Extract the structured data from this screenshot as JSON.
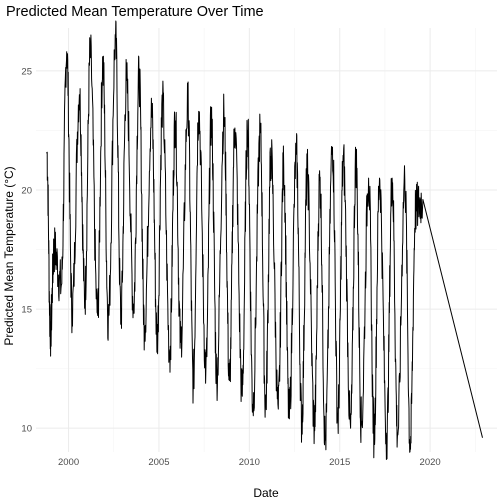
{
  "chart_data": {
    "type": "line",
    "title": "Predicted Mean Temperature Over Time",
    "xlabel": "Date",
    "ylabel": "Predicted Mean Temperature (°C)",
    "x_ticks": [
      2000,
      2005,
      2010,
      2015,
      2020
    ],
    "y_ticks": [
      10,
      15,
      20,
      25
    ],
    "xlim": [
      1998.2,
      2023.7
    ],
    "ylim": [
      9.0,
      26.8
    ],
    "grid": true,
    "x_unit": "decimal year",
    "series": [
      {
        "x": [
          1998.8,
          1999.0,
          1999.2,
          1999.6,
          1999.9,
          2000.2,
          2000.6,
          2000.9,
          2001.2,
          2001.6,
          2001.9,
          2002.2,
          2002.6,
          2002.9,
          2003.2,
          2003.6,
          2003.9,
          2004.2,
          2004.6,
          2004.9,
          2005.2,
          2005.6,
          2005.9,
          2006.2,
          2006.6,
          2006.9,
          2007.2,
          2007.6,
          2007.9,
          2008.2,
          2008.6,
          2008.9,
          2009.2,
          2009.6,
          2009.9,
          2010.2,
          2010.6,
          2010.9,
          2011.2,
          2011.6,
          2011.9,
          2012.2,
          2012.6,
          2012.9,
          2013.2,
          2013.6,
          2013.9,
          2014.2,
          2014.6,
          2014.9,
          2015.2,
          2015.6,
          2015.9,
          2016.2,
          2016.6,
          2016.9,
          2017.2,
          2017.6,
          2017.9,
          2018.2,
          2018.6,
          2018.9,
          2019.2,
          2019.6,
          2022.9
        ],
        "y": [
          21.6,
          14.0,
          17.5,
          16.0,
          25.8,
          15.0,
          24.0,
          15.5,
          25.7,
          14.8,
          25.3,
          14.6,
          26.3,
          14.8,
          24.6,
          15.2,
          24.8,
          14.3,
          23.2,
          13.8,
          23.6,
          13.2,
          22.9,
          13.6,
          23.6,
          12.0,
          23.3,
          12.5,
          22.9,
          12.2,
          23.1,
          12.0,
          22.6,
          11.5,
          22.5,
          11.0,
          22.4,
          11.0,
          21.4,
          10.8,
          21.0,
          10.5,
          21.5,
          10.3,
          20.7,
          10.1,
          20.4,
          9.5,
          21.8,
          10.4,
          21.2,
          10.0,
          21.2,
          10.2,
          20.5,
          9.8,
          20.5,
          9.7,
          20.5,
          9.8,
          20.4,
          9.3,
          19.2,
          19.6,
          9.6
        ]
      }
    ]
  }
}
